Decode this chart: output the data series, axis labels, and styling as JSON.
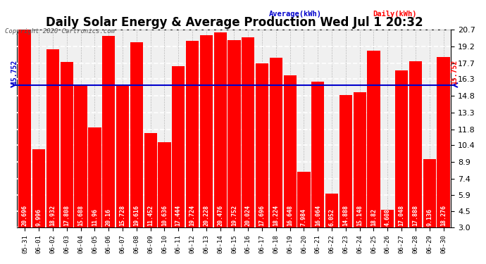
{
  "title": "Daily Solar Energy & Average Production Wed Jul 1 20:32",
  "copyright": "Copyright 2020 Cartronics.com",
  "legend_avg": "Average(kWh)",
  "legend_daily": "Daily(kWh)",
  "average_value": 15.752,
  "categories": [
    "05-31",
    "06-01",
    "06-02",
    "06-03",
    "06-04",
    "06-05",
    "06-06",
    "06-07",
    "06-08",
    "06-09",
    "06-10",
    "06-11",
    "06-12",
    "06-13",
    "06-14",
    "06-15",
    "06-16",
    "06-17",
    "06-18",
    "06-19",
    "06-20",
    "06-21",
    "06-22",
    "06-23",
    "06-24",
    "06-25",
    "06-26",
    "06-27",
    "06-28",
    "06-29",
    "06-30"
  ],
  "values": [
    20.696,
    9.996,
    18.932,
    17.808,
    15.688,
    11.96,
    20.16,
    15.728,
    19.616,
    11.452,
    10.636,
    17.444,
    19.724,
    20.228,
    20.476,
    19.752,
    20.024,
    17.696,
    18.224,
    16.648,
    7.984,
    16.064,
    6.052,
    14.888,
    15.148,
    18.82,
    4.608,
    17.048,
    17.888,
    9.136,
    18.276
  ],
  "bar_color": "#ff0000",
  "avg_line_color": "#0000cc",
  "avg_label_left_color": "#0000cc",
  "avg_label_right_color": "#ff0000",
  "bar_text_color": "#ffffff",
  "ymin": 3.0,
  "ymax": 20.7,
  "yticks": [
    3.0,
    4.5,
    5.9,
    7.4,
    8.9,
    10.4,
    11.8,
    13.3,
    14.8,
    16.3,
    17.7,
    19.2,
    20.7
  ],
  "background_color": "#ffffff",
  "grid_color": "#888888",
  "title_fontsize": 12,
  "bar_label_fontsize": 6.0,
  "avg_fontsize": 7.0,
  "copyright_color": "#555555"
}
